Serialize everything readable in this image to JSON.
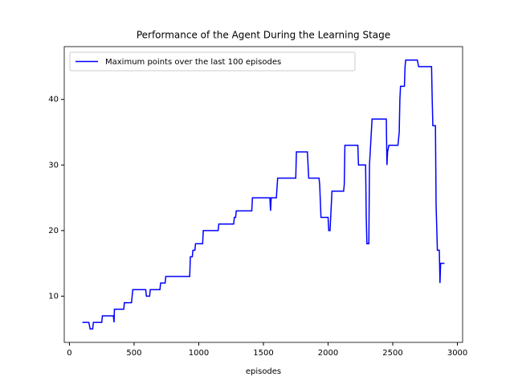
{
  "chart_data": {
    "type": "line",
    "title": "Performance of the Agent During the Learning Stage",
    "x_label": "episodes",
    "x": [
      100,
      150,
      160,
      180,
      185,
      250,
      255,
      340,
      345,
      348,
      420,
      425,
      480,
      490,
      590,
      595,
      620,
      625,
      700,
      705,
      740,
      745,
      930,
      935,
      950,
      955,
      970,
      975,
      1030,
      1035,
      1150,
      1155,
      1270,
      1275,
      1285,
      1290,
      1410,
      1415,
      1550,
      1555,
      1560,
      1600,
      1610,
      1750,
      1755,
      1840,
      1845,
      1850,
      1930,
      1935,
      1945,
      2000,
      2005,
      2015,
      2020,
      2030,
      2120,
      2125,
      2130,
      2230,
      2235,
      2290,
      2295,
      2300,
      2315,
      2320,
      2340,
      2450,
      2455,
      2460,
      2470,
      2540,
      2550,
      2555,
      2560,
      2590,
      2595,
      2600,
      2690,
      2700,
      2800,
      2805,
      2810,
      2830,
      2835,
      2845,
      2860,
      2865,
      2870,
      2900
    ],
    "series": [
      {
        "name": "Maximum points over the last 100 episodes",
        "color": "#0000ff",
        "values": [
          6,
          6,
          5,
          5,
          6,
          6,
          7,
          7,
          6,
          8,
          8,
          9,
          9,
          11,
          11,
          10,
          10,
          11,
          11,
          12,
          12,
          13,
          13,
          16,
          16,
          17,
          17,
          18,
          18,
          20,
          20,
          21,
          21,
          22,
          22,
          23,
          23,
          25,
          25,
          23,
          25,
          25,
          28,
          28,
          32,
          32,
          30,
          28,
          28,
          27,
          22,
          22,
          20,
          20,
          22,
          26,
          26,
          27,
          33,
          33,
          30,
          30,
          22,
          18,
          18,
          30,
          37,
          37,
          30,
          32,
          33,
          33,
          35,
          40,
          42,
          42,
          45,
          46,
          46,
          45,
          45,
          40,
          36,
          36,
          24,
          17,
          17,
          12,
          15,
          15
        ]
      }
    ],
    "xlim": [
      -40,
      3040
    ],
    "ylim": [
      2.95,
      48.05
    ],
    "xticks": [
      0,
      500,
      1000,
      1500,
      2000,
      2500,
      3000
    ],
    "yticks": [
      10,
      20,
      30,
      40
    ],
    "legend": "upper left"
  }
}
